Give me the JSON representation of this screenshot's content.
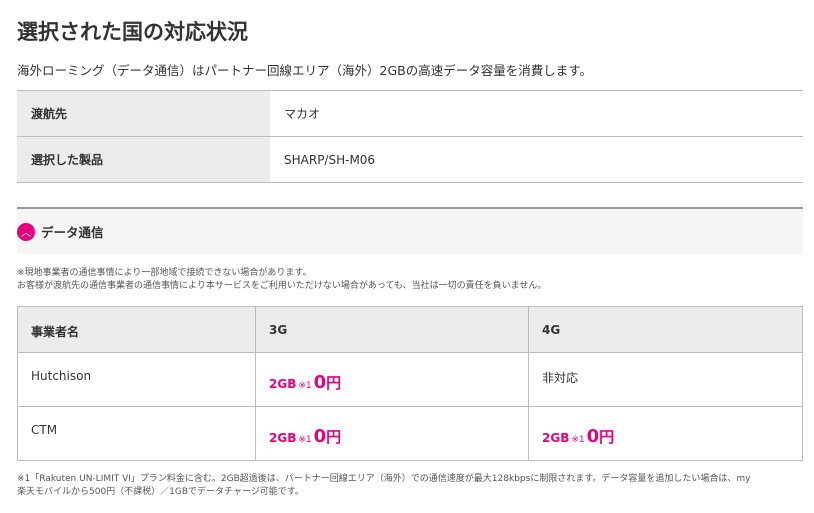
{
  "title": "選択された国の対応状況",
  "lead": "海外ローミング（データ通信）はパートナー回線エリア（海外）2GBの高速データ容量を消費します。",
  "info": [
    {
      "label": "渡航先",
      "value": "マカオ"
    },
    {
      "label": "選択した製品",
      "value": "SHARP/SH-M06"
    }
  ],
  "accordion": {
    "label": "データ通信",
    "icon": "chevron-up-icon",
    "expanded": true
  },
  "notes": [
    "※現地事業者の通信事情により一部地域で接続できない場合があります。",
    "お客様が渡航先の通信事業者の通信事情により本サービスをご利用いただけない場合があっても、当社は一切の責任を負いません。"
  ],
  "table": {
    "headers": [
      "事業者名",
      "3G",
      "4G"
    ],
    "rows": [
      {
        "name": "Hutchison",
        "g3": {
          "cap": "2GB",
          "note": "※1",
          "price": "0",
          "unit": "円"
        },
        "g4": "非対応"
      },
      {
        "name": "CTM",
        "g3": {
          "cap": "2GB",
          "note": "※1",
          "price": "0",
          "unit": "円"
        },
        "g4": {
          "cap": "2GB",
          "note": "※1",
          "price": "0",
          "unit": "円"
        }
      }
    ]
  },
  "footnote": [
    "※1「Rakuten UN-LIMIT VI」プラン料金に含む。2GB超過後は、パートナー回線エリア（海外）での通信速度が最大128kbpsに制限されます。データ容量を追加したい場合は、my",
    "楽天モバイルから500円（不課税）／1GBでデータチャージ可能です。"
  ],
  "colors": {
    "accent": "#e8007f"
  }
}
